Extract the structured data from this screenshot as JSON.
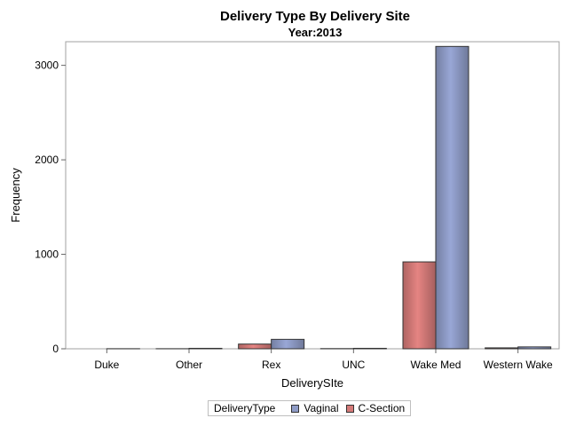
{
  "chart_data": {
    "type": "bar",
    "title": "Delivery Type By Delivery Site",
    "subtitle": "Year:2013",
    "xlabel": "DeliverySIte",
    "ylabel": "Frequency",
    "categories": [
      "Duke",
      "Other",
      "Rex",
      "UNC",
      "Wake Med",
      "Western Wake"
    ],
    "series": [
      {
        "name": "C-Section",
        "color": "#d47a78",
        "values": [
          0,
          1,
          50,
          2,
          920,
          10
        ]
      },
      {
        "name": "Vaginal",
        "color": "#8e9bc6",
        "values": [
          1,
          5,
          100,
          5,
          3200,
          20
        ]
      }
    ],
    "ylim": [
      0,
      3250
    ],
    "yticks": [
      0,
      1000,
      2000,
      3000
    ],
    "legend": {
      "title": "DeliveryType",
      "order": [
        "Vaginal",
        "C-Section"
      ],
      "position": "bottom-center"
    },
    "grid": false
  }
}
